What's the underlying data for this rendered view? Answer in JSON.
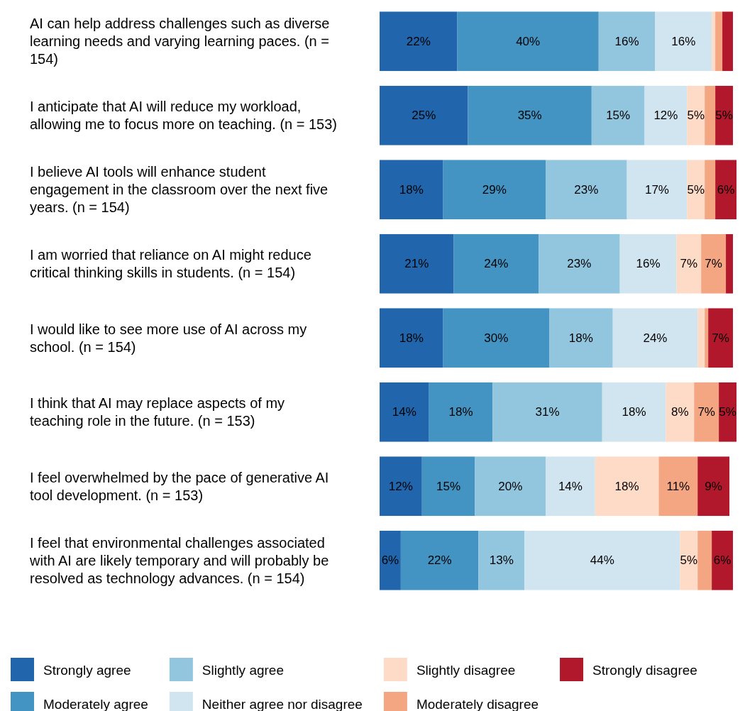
{
  "chart_data": {
    "type": "bar",
    "orientation": "horizontal",
    "stacked": true,
    "legend": "bottom",
    "xlim": [
      0,
      101
    ],
    "categories": [
      "AI can help address challenges such as diverse learning needs and varying learning paces. (n = 154)",
      "I anticipate that AI will reduce my workload, allowing me to focus more on teaching. (n = 153)",
      "I believe AI tools will enhance student engagement in the classroom over the next five years. (n = 154)",
      "I am worried that reliance on AI might reduce critical thinking skills in students. (n = 154)",
      "I would like to see more use of AI across my school. (n = 154)",
      "I think that AI may replace aspects of my teaching role in the future. (n = 153)",
      "I feel overwhelmed by the pace of generative AI tool development. (n = 153)",
      "I feel that environmental challenges associated with AI are likely temporary and will probably be resolved as technology advances. (n = 154)"
    ],
    "series": [
      {
        "name": "Strongly agree",
        "color": "#2166ac",
        "values": [
          22,
          25,
          18,
          21,
          18,
          14,
          12,
          6
        ],
        "value_labels": [
          "22%",
          "25%",
          "18%",
          "21%",
          "18%",
          "14%",
          "12%",
          "6%"
        ]
      },
      {
        "name": "Moderately agree",
        "color": "#4393c3",
        "values": [
          40,
          35,
          29,
          24,
          30,
          18,
          15,
          22
        ],
        "value_labels": [
          "40%",
          "35%",
          "29%",
          "24%",
          "30%",
          "18%",
          "15%",
          "22%"
        ]
      },
      {
        "name": "Slightly agree",
        "color": "#92c5de",
        "values": [
          16,
          15,
          23,
          23,
          18,
          31,
          20,
          13
        ],
        "value_labels": [
          "16%",
          "15%",
          "23%",
          "23%",
          "18%",
          "31%",
          "20%",
          "13%"
        ]
      },
      {
        "name": "Neither agree nor disagree",
        "color": "#d1e5f0",
        "values": [
          16,
          12,
          17,
          16,
          24,
          18,
          14,
          44
        ],
        "value_labels": [
          "16%",
          "12%",
          "17%",
          "16%",
          "24%",
          "18%",
          "14%",
          "44%"
        ]
      },
      {
        "name": "Slightly disagree",
        "color": "#fddbc7",
        "values": [
          1,
          5,
          5,
          7,
          2,
          8,
          18,
          5
        ],
        "value_labels": [
          null,
          "5%",
          "5%",
          "7%",
          null,
          "8%",
          "18%",
          "5%"
        ]
      },
      {
        "name": "Moderately disagree",
        "color": "#f4a582",
        "values": [
          2,
          3,
          3,
          7,
          1,
          7,
          11,
          4
        ],
        "value_labels": [
          null,
          null,
          null,
          "7%",
          null,
          "7%",
          "11%",
          null
        ]
      },
      {
        "name": "Strongly disagree",
        "color": "#b2182b",
        "values": [
          3,
          5,
          6,
          2,
          7,
          5,
          9,
          6
        ],
        "value_labels": [
          null,
          "5%",
          "6%",
          null,
          "7%",
          "5%",
          "9%",
          "6%"
        ]
      }
    ]
  }
}
